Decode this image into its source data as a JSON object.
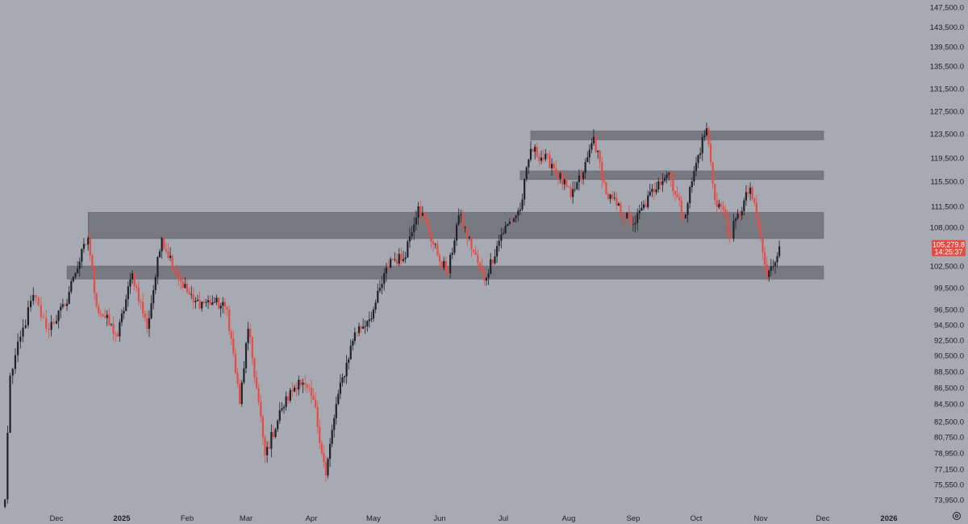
{
  "chart_data": {
    "type": "candlestick",
    "symbol_price_tag": {
      "price": "105,279.8",
      "countdown": "14:25:37"
    },
    "y_axis": {
      "ylim": [
        72850,
        150000
      ],
      "tick_labels": [
        "147,500.0",
        "143,500.0",
        "139,500.0",
        "135,500.0",
        "131,500.0",
        "127,500.0",
        "123,500.0",
        "119,500.0",
        "115,500.0",
        "111,500.0",
        "108,000.0",
        "102,500.0",
        "99,500.0",
        "96,500.0",
        "94,500.0",
        "92,500.0",
        "90,500.0",
        "88,500.0",
        "86,500.0",
        "84,500.0",
        "82,500.0",
        "80,750.0",
        "78,950.0",
        "77,150.0",
        "75,550.0",
        "73,950.0"
      ]
    },
    "x_axis": {
      "labels": [
        "Dec",
        "2025",
        "Feb",
        "Mar",
        "Apr",
        "May",
        "Jun",
        "Jul",
        "Aug",
        "Sep",
        "Oct",
        "Nov",
        "Dec",
        "2026"
      ],
      "bold_labels": [
        "2025",
        "2026"
      ]
    },
    "colors": {
      "up": "#1f2229",
      "down": "#e54c43",
      "zone": "#6e7077",
      "background": "#a7a9b3",
      "price_tag": "#e54c43"
    },
    "key_points": [
      {
        "date": "2024-11-11",
        "close": 74000
      },
      {
        "date": "2024-11-13",
        "close": 88000
      },
      {
        "date": "2024-11-22",
        "close": 98500
      },
      {
        "date": "2024-11-27",
        "close": 94000
      },
      {
        "date": "2024-12-05",
        "close": 97000
      },
      {
        "date": "2024-12-09",
        "close": 101000
      },
      {
        "date": "2024-12-16",
        "close": 106500
      },
      {
        "date": "2024-12-20",
        "close": 97000
      },
      {
        "date": "2024-12-30",
        "close": 93000
      },
      {
        "date": "2025-01-06",
        "close": 101500
      },
      {
        "date": "2025-01-13",
        "close": 94000
      },
      {
        "date": "2025-01-20",
        "close": 106500
      },
      {
        "date": "2025-01-27",
        "close": 101500
      },
      {
        "date": "2025-02-04",
        "close": 97500
      },
      {
        "date": "2025-02-14",
        "close": 97500
      },
      {
        "date": "2025-02-20",
        "close": 96500
      },
      {
        "date": "2025-02-26",
        "close": 84500
      },
      {
        "date": "2025-03-02",
        "close": 94000
      },
      {
        "date": "2025-03-10",
        "close": 78700
      },
      {
        "date": "2025-03-18",
        "close": 84000
      },
      {
        "date": "2025-03-26",
        "close": 87500
      },
      {
        "date": "2025-04-02",
        "close": 85000
      },
      {
        "date": "2025-04-08",
        "close": 76500
      },
      {
        "date": "2025-04-13",
        "close": 84500
      },
      {
        "date": "2025-04-22",
        "close": 93500
      },
      {
        "date": "2025-04-28",
        "close": 95000
      },
      {
        "date": "2025-05-01",
        "close": 96500
      },
      {
        "date": "2025-05-09",
        "close": 103500
      },
      {
        "date": "2025-05-15",
        "close": 103500
      },
      {
        "date": "2025-05-22",
        "close": 111500
      },
      {
        "date": "2025-05-31",
        "close": 104000
      },
      {
        "date": "2025-06-05",
        "close": 101500
      },
      {
        "date": "2025-06-10",
        "close": 110000
      },
      {
        "date": "2025-06-22",
        "close": 100500
      },
      {
        "date": "2025-06-30",
        "close": 107000
      },
      {
        "date": "2025-07-09",
        "close": 111000
      },
      {
        "date": "2025-07-14",
        "close": 121000
      },
      {
        "date": "2025-07-24",
        "close": 118500
      },
      {
        "date": "2025-08-02",
        "close": 113000
      },
      {
        "date": "2025-08-08",
        "close": 117000
      },
      {
        "date": "2025-08-13",
        "close": 123000
      },
      {
        "date": "2025-08-19",
        "close": 113500
      },
      {
        "date": "2025-09-01",
        "close": 108500
      },
      {
        "date": "2025-09-13",
        "close": 115500
      },
      {
        "date": "2025-09-18",
        "close": 117000
      },
      {
        "date": "2025-09-25",
        "close": 109500
      },
      {
        "date": "2025-10-02",
        "close": 120000
      },
      {
        "date": "2025-10-06",
        "close": 124500
      },
      {
        "date": "2025-10-10",
        "close": 112500
      },
      {
        "date": "2025-10-14",
        "close": 111000
      },
      {
        "date": "2025-10-17",
        "close": 106500
      },
      {
        "date": "2025-10-27",
        "close": 114500
      },
      {
        "date": "2025-11-04",
        "close": 101000
      },
      {
        "date": "2025-11-07",
        "close": 102500
      },
      {
        "date": "2025-11-10",
        "close": 105280
      }
    ],
    "zones": [
      {
        "start": "2025-07-14",
        "end": "2025-12-25",
        "low": 122500,
        "high": 124000
      },
      {
        "start": "2025-07-09",
        "end": "2025-12-25",
        "low": 115800,
        "high": 117300
      },
      {
        "start": "2024-12-16",
        "end": "2025-12-25",
        "low": 106400,
        "high": 110500
      },
      {
        "start": "2024-12-06",
        "end": "2025-12-25",
        "low": 100700,
        "high": 102500
      }
    ]
  }
}
